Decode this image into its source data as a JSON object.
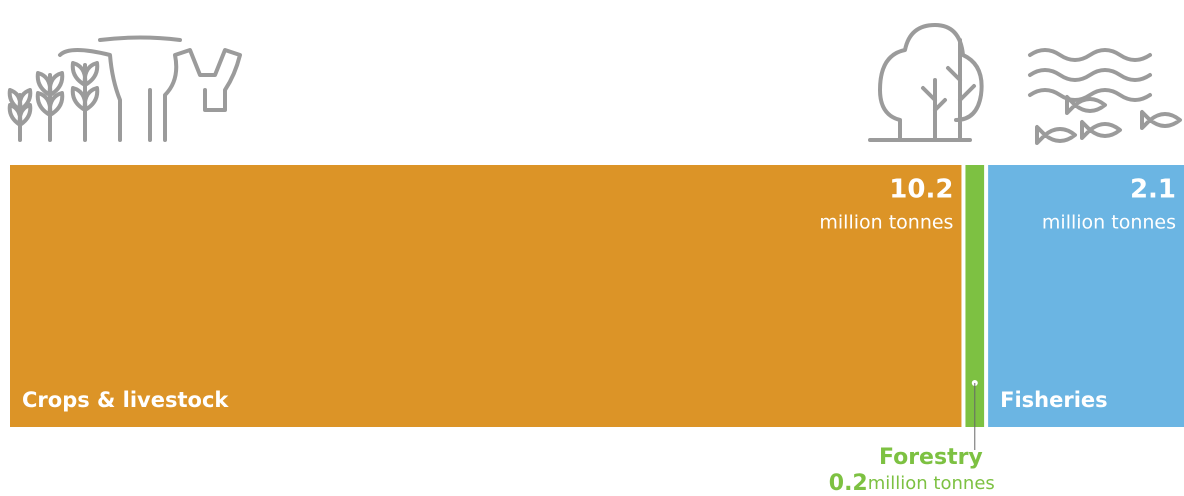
{
  "chart_data": {
    "type": "proportional-bar",
    "unit": "million tonnes",
    "series": [
      {
        "name": "Crops & livestock",
        "color": "#dc9427",
        "values": [
          10.2
        ]
      },
      {
        "name": "Forestry",
        "color": "#7dc142",
        "values": [
          0.2
        ]
      },
      {
        "name": "Fisheries",
        "color": "#6bb5e3",
        "values": [
          2.1
        ]
      }
    ]
  }
}
